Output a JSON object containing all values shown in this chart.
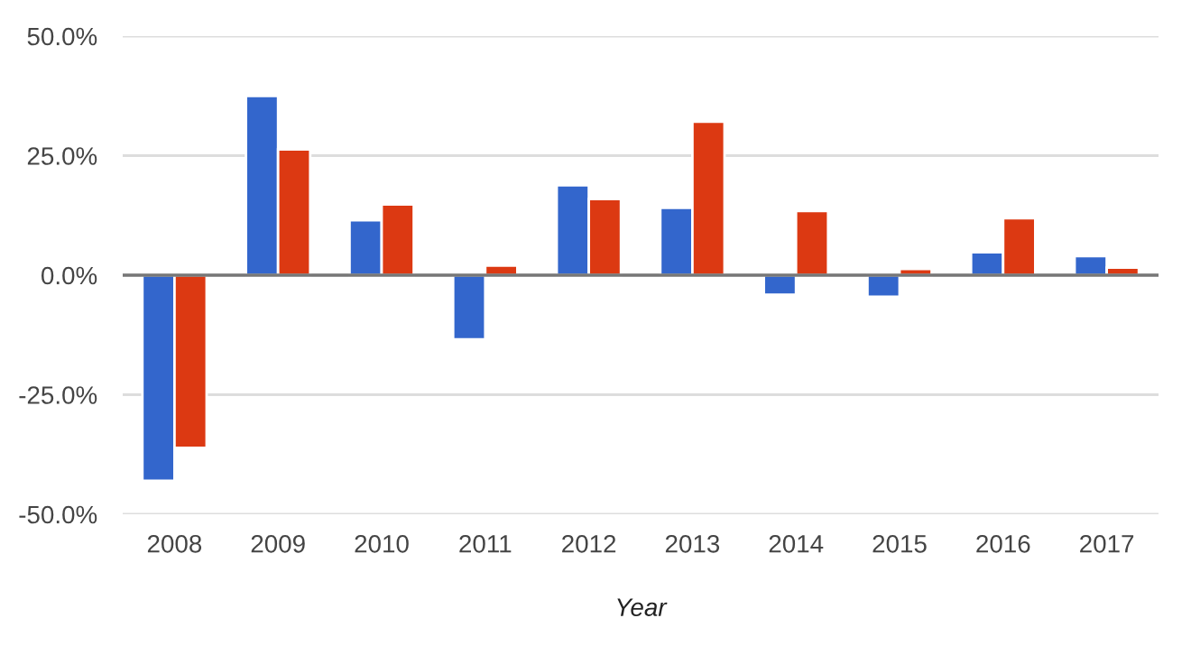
{
  "chart_data": {
    "type": "bar",
    "xlabel": "Year",
    "categories": [
      "2008",
      "2009",
      "2010",
      "2011",
      "2012",
      "2013",
      "2014",
      "2015",
      "2016",
      "2017"
    ],
    "series": [
      {
        "color": "#3366cc",
        "values": [
          -43.0,
          37.5,
          11.5,
          -13.4,
          18.8,
          14.1,
          -4.1,
          -4.5,
          4.8,
          4.0
        ]
      },
      {
        "color": "#dc3912",
        "values": [
          -36.1,
          26.3,
          14.8,
          2.0,
          15.9,
          32.1,
          13.4,
          1.3,
          11.9,
          1.6
        ]
      }
    ],
    "ylim": [
      -50,
      50
    ],
    "yticks": [
      {
        "value": -50,
        "label": "-50.0%"
      },
      {
        "value": -25,
        "label": "-25.0%"
      },
      {
        "value": 0,
        "label": "0.0%"
      },
      {
        "value": 25,
        "label": "25.0%"
      },
      {
        "value": 50,
        "label": "50.0%"
      }
    ],
    "grid": "y"
  }
}
